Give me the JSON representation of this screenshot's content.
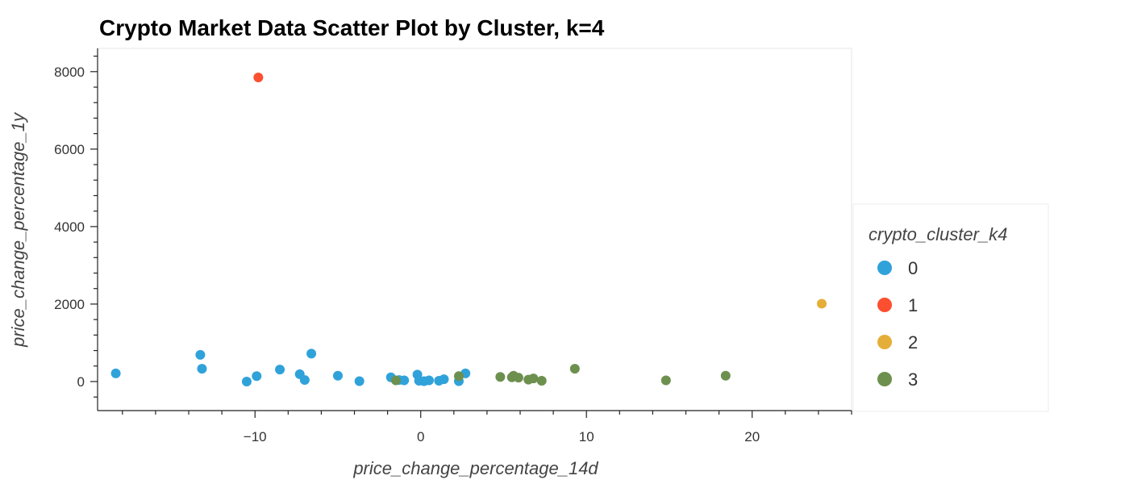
{
  "chart_data": {
    "type": "scatter",
    "title": "Crypto Market Data Scatter Plot by Cluster, k=4",
    "xlabel": "price_change_percentage_14d",
    "ylabel": "price_change_percentage_1y",
    "xlim": [
      -19.5,
      26
    ],
    "ylim": [
      -750,
      8600
    ],
    "x_ticks": [
      -10,
      0,
      10,
      20
    ],
    "x_tick_labels": [
      "−10",
      "0",
      "10",
      "20"
    ],
    "y_ticks": [
      0,
      2000,
      4000,
      6000,
      8000
    ],
    "y_tick_labels": [
      "0",
      "2000",
      "4000",
      "6000",
      "8000"
    ],
    "grid": false,
    "legend": {
      "title": "crypto_cluster_k4",
      "placement": "right"
    },
    "series": [
      {
        "name": "0",
        "color": "#30a2da",
        "points": [
          [
            -18.4,
            210
          ],
          [
            -13.3,
            690
          ],
          [
            -13.2,
            330
          ],
          [
            -10.5,
            0
          ],
          [
            -9.9,
            140
          ],
          [
            -8.5,
            310
          ],
          [
            -7.3,
            190
          ],
          [
            -7.0,
            40
          ],
          [
            -6.6,
            720
          ],
          [
            -5.0,
            150
          ],
          [
            -3.7,
            10
          ],
          [
            -1.8,
            110
          ],
          [
            -1.3,
            40
          ],
          [
            -1.0,
            30
          ],
          [
            -0.2,
            180
          ],
          [
            -0.1,
            20
          ],
          [
            0.2,
            10
          ],
          [
            0.5,
            30
          ],
          [
            1.1,
            20
          ],
          [
            1.4,
            60
          ],
          [
            2.3,
            10
          ],
          [
            2.7,
            210
          ]
        ]
      },
      {
        "name": "1",
        "color": "#fc4f30",
        "points": [
          [
            -9.8,
            7850
          ]
        ]
      },
      {
        "name": "2",
        "color": "#e5ae38",
        "points": [
          [
            24.2,
            2010
          ]
        ]
      },
      {
        "name": "3",
        "color": "#6d904f",
        "points": [
          [
            -1.5,
            30
          ],
          [
            2.3,
            140
          ],
          [
            4.8,
            120
          ],
          [
            5.5,
            110
          ],
          [
            5.6,
            150
          ],
          [
            5.9,
            100
          ],
          [
            6.5,
            50
          ],
          [
            6.8,
            80
          ],
          [
            7.3,
            20
          ],
          [
            9.3,
            330
          ],
          [
            14.8,
            30
          ],
          [
            18.4,
            150
          ]
        ]
      }
    ]
  }
}
